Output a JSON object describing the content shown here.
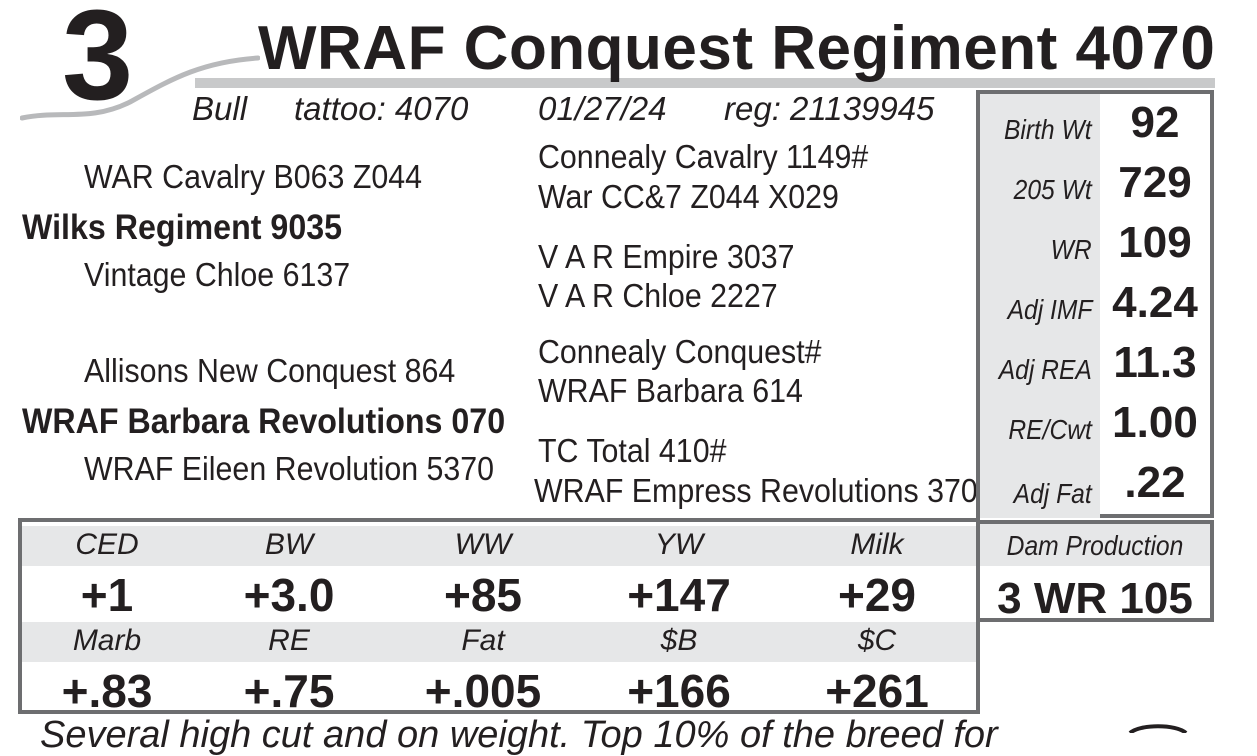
{
  "lot_number": "3",
  "name": "WRAF Conquest Regiment 4070",
  "details": {
    "sex": "Bull",
    "tattoo": "tattoo:  4070",
    "birth_date": "01/27/24",
    "registration": "reg:  21139945"
  },
  "pedigree": {
    "sire_sire": "WAR Cavalry B063 Z044",
    "sire": "Wilks Regiment 9035",
    "sire_dam": "Vintage Chloe 6137",
    "dam_sire": "Allisons New Conquest 864",
    "dam": "WRAF Barbara Revolutions 070",
    "dam_dam": "WRAF Eileen Revolution 5370",
    "ss_sire": "Connealy Cavalry 1149#",
    "ss_dam": "War CC&7 Z044 X029",
    "sd_sire": "V A R Empire 3037",
    "sd_dam": "V A R Chloe 2227",
    "ds_sire": "Connealy Conquest#",
    "ds_dam": "WRAF Barbara 614",
    "dd_sire": "TC Total 410#",
    "dd_dam": "WRAF Empress Revolutions 370"
  },
  "performance": [
    {
      "label": "Birth Wt",
      "value": "92"
    },
    {
      "label": "205 Wt",
      "value": "729"
    },
    {
      "label": "WR",
      "value": "109"
    },
    {
      "label": "Adj IMF",
      "value": "4.24"
    },
    {
      "label": "Adj REA",
      "value": "11.3"
    },
    {
      "label": "RE/Cwt",
      "value": "1.00"
    },
    {
      "label": "Adj Fat",
      "value": ".22"
    }
  ],
  "epds": {
    "row1": [
      {
        "label": "CED",
        "value": "+1"
      },
      {
        "label": "BW",
        "value": "+3.0"
      },
      {
        "label": "WW",
        "value": "+85"
      },
      {
        "label": "YW",
        "value": "+147"
      },
      {
        "label": "Milk",
        "value": "+29"
      }
    ],
    "row2": [
      {
        "label": "Marb",
        "value": "+.83"
      },
      {
        "label": "RE",
        "value": "+.75"
      },
      {
        "label": "Fat",
        "value": "+.005"
      },
      {
        "label": "$B",
        "value": "+166"
      },
      {
        "label": "$C",
        "value": "+261"
      }
    ]
  },
  "dam_production": {
    "label": "Dam Production",
    "value": "3 WR 105"
  },
  "footer": "Several high cut and on weight. Top 10% of the breed for",
  "colors": {
    "text": "#231f20",
    "border": "#6d6e70",
    "shade": "#e6e7e8",
    "rule": "#c8c9ca"
  }
}
